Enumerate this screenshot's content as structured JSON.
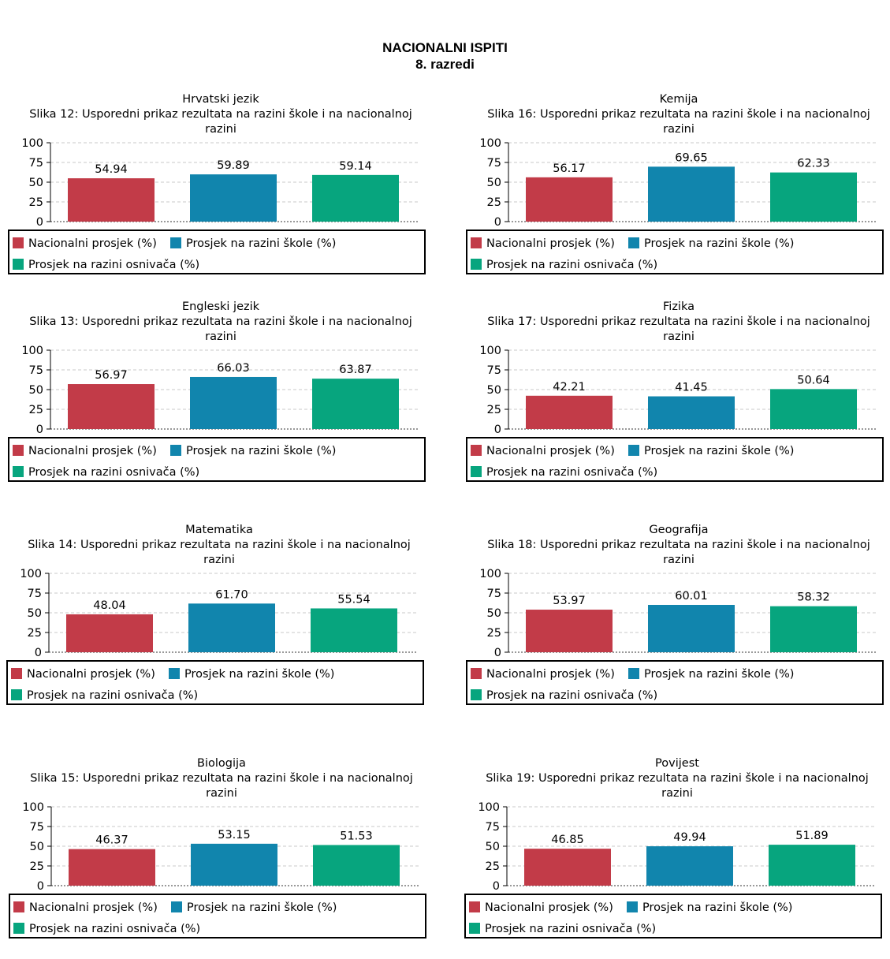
{
  "header": {
    "title": "NACIONALNI ISPITI",
    "subtitle": "8. razredi"
  },
  "colors": {
    "nacionalni": "#c23b48",
    "skola": "#1185ad",
    "osnivac": "#07a57e",
    "grid": "#c8c8c8",
    "axis": "#000000"
  },
  "legend": {
    "nacionalni": "Nacionalni prosjek (%)",
    "skola": "Prosjek na razini škole (%)",
    "osnivac": "Prosjek na razini osnivača (%)"
  },
  "chart_data": [
    {
      "type": "bar",
      "subject": "Hrvatski jezik",
      "caption": "Slika 12: Usporedni prikaz rezultata na razini škole i na nacionalnoj razini",
      "series": [
        {
          "name": "Nacionalni prosjek (%)",
          "values": [
            54.94
          ]
        },
        {
          "name": "Prosjek na razini škole (%)",
          "values": [
            59.89
          ]
        },
        {
          "name": "Prosjek na razini osnivača (%)",
          "values": [
            59.14
          ]
        }
      ],
      "data_labels": [
        "54.94",
        "59.89",
        "59.14"
      ],
      "ylim": [
        0,
        100
      ],
      "yticks": [
        "100",
        "75",
        "50",
        "25",
        "0"
      ],
      "grid": true,
      "legend_position": "bottom"
    },
    {
      "type": "bar",
      "subject": "Kemija",
      "caption": "Slika 16: Usporedni prikaz rezultata na razini škole i na nacionalnoj razini",
      "series": [
        {
          "name": "Nacionalni prosjek (%)",
          "values": [
            56.17
          ]
        },
        {
          "name": "Prosjek na razini škole (%)",
          "values": [
            69.65
          ]
        },
        {
          "name": "Prosjek na razini osnivača (%)",
          "values": [
            62.33
          ]
        }
      ],
      "data_labels": [
        "56.17",
        "69.65",
        "62.33"
      ],
      "ylim": [
        0,
        100
      ],
      "yticks": [
        "100",
        "75",
        "50",
        "25",
        "0"
      ],
      "grid": true,
      "legend_position": "bottom"
    },
    {
      "type": "bar",
      "subject": "Engleski jezik",
      "caption": "Slika 13: Usporedni prikaz rezultata na razini škole i na nacionalnoj razini",
      "series": [
        {
          "name": "Nacionalni prosjek (%)",
          "values": [
            56.97
          ]
        },
        {
          "name": "Prosjek na razini škole (%)",
          "values": [
            66.03
          ]
        },
        {
          "name": "Prosjek na razini osnivača (%)",
          "values": [
            63.87
          ]
        }
      ],
      "data_labels": [
        "56.97",
        "66.03",
        "63.87"
      ],
      "ylim": [
        0,
        100
      ],
      "yticks": [
        "100",
        "75",
        "50",
        "25",
        "0"
      ],
      "grid": true,
      "legend_position": "bottom"
    },
    {
      "type": "bar",
      "subject": "Fizika",
      "caption": "Slika 17: Usporedni prikaz rezultata na razini škole i na nacionalnoj razini",
      "series": [
        {
          "name": "Nacionalni prosjek (%)",
          "values": [
            42.21
          ]
        },
        {
          "name": "Prosjek na razini škole (%)",
          "values": [
            41.45
          ]
        },
        {
          "name": "Prosjek na razini osnivača (%)",
          "values": [
            50.64
          ]
        }
      ],
      "data_labels": [
        "42.21",
        "41.45",
        "50.64"
      ],
      "ylim": [
        0,
        100
      ],
      "yticks": [
        "100",
        "75",
        "50",
        "25",
        "0"
      ],
      "grid": true,
      "legend_position": "bottom"
    },
    {
      "type": "bar",
      "subject": "Matematika",
      "caption": "Slika 14: Usporedni prikaz rezultata na razini škole i na nacionalnoj razini",
      "series": [
        {
          "name": "Nacionalni prosjek (%)",
          "values": [
            48.04
          ]
        },
        {
          "name": "Prosjek na razini škole (%)",
          "values": [
            61.7
          ]
        },
        {
          "name": "Prosjek na razini osnivača (%)",
          "values": [
            55.54
          ]
        }
      ],
      "data_labels": [
        "48.04",
        "61.70",
        "55.54"
      ],
      "ylim": [
        0,
        100
      ],
      "yticks": [
        "100",
        "75",
        "50",
        "25",
        "0"
      ],
      "grid": true,
      "legend_position": "bottom"
    },
    {
      "type": "bar",
      "subject": "Geografija",
      "caption": "Slika 18: Usporedni prikaz rezultata na razini škole i na nacionalnoj razini",
      "series": [
        {
          "name": "Nacionalni prosjek (%)",
          "values": [
            53.97
          ]
        },
        {
          "name": "Prosjek na razini škole (%)",
          "values": [
            60.01
          ]
        },
        {
          "name": "Prosjek na razini osnivača (%)",
          "values": [
            58.32
          ]
        }
      ],
      "data_labels": [
        "53.97",
        "60.01",
        "58.32"
      ],
      "ylim": [
        0,
        100
      ],
      "yticks": [
        "100",
        "75",
        "50",
        "25",
        "0"
      ],
      "grid": true,
      "legend_position": "bottom"
    },
    {
      "type": "bar",
      "subject": "Biologija",
      "caption": "Slika 15: Usporedni prikaz rezultata na razini škole i na nacionalnoj razini",
      "series": [
        {
          "name": "Nacionalni prosjek (%)",
          "values": [
            46.37
          ]
        },
        {
          "name": "Prosjek na razini škole (%)",
          "values": [
            53.15
          ]
        },
        {
          "name": "Prosjek na razini osnivača (%)",
          "values": [
            51.53
          ]
        }
      ],
      "data_labels": [
        "46.37",
        "53.15",
        "51.53"
      ],
      "ylim": [
        0,
        100
      ],
      "yticks": [
        "100",
        "75",
        "50",
        "25",
        "0"
      ],
      "grid": true,
      "legend_position": "bottom"
    },
    {
      "type": "bar",
      "subject": "Povijest",
      "caption": "Slika 19: Usporedni prikaz rezultata na razini škole i na nacionalnoj razini",
      "series": [
        {
          "name": "Nacionalni prosjek (%)",
          "values": [
            46.85
          ]
        },
        {
          "name": "Prosjek na razini škole (%)",
          "values": [
            49.94
          ]
        },
        {
          "name": "Prosjek na razini osnivača (%)",
          "values": [
            51.89
          ]
        }
      ],
      "data_labels": [
        "46.85",
        "49.94",
        "51.89"
      ],
      "ylim": [
        0,
        100
      ],
      "yticks": [
        "100",
        "75",
        "50",
        "25",
        "0"
      ],
      "grid": true,
      "legend_position": "bottom"
    }
  ]
}
